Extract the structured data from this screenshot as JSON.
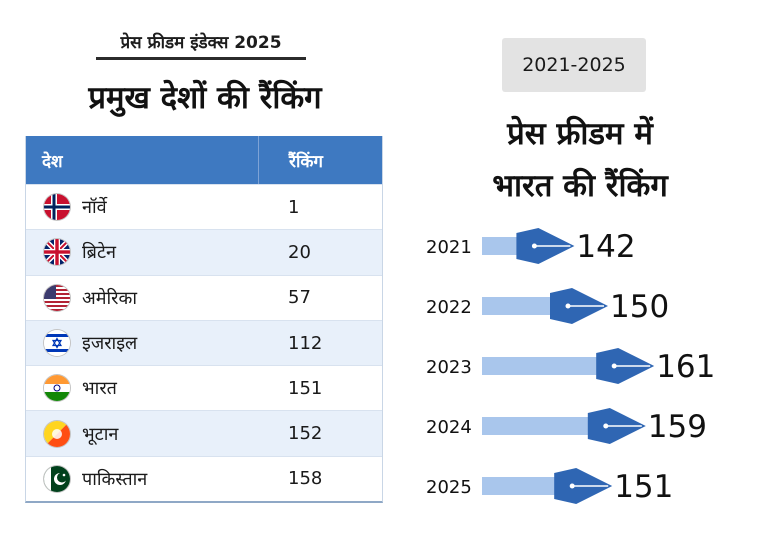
{
  "left": {
    "subtitle": "प्रेस फ्रीडम इंडेक्स 2025",
    "title": "प्रमुख देशों की रैंकिंग",
    "table": {
      "headers": [
        "देश",
        "रैंकिंग"
      ],
      "rows": [
        {
          "country": "नॉर्वे",
          "rank": "1",
          "flag": "norway-flag-icon"
        },
        {
          "country": "ब्रिटेन",
          "rank": "20",
          "flag": "uk-flag-icon"
        },
        {
          "country": "अमेरिका",
          "rank": "57",
          "flag": "usa-flag-icon"
        },
        {
          "country": "इजराइल",
          "rank": "112",
          "flag": "israel-flag-icon"
        },
        {
          "country": "भारत",
          "rank": "151",
          "flag": "india-flag-icon"
        },
        {
          "country": "भूटान",
          "rank": "152",
          "flag": "bhutan-flag-icon"
        },
        {
          "country": "पाकिस्तान",
          "rank": "158",
          "flag": "pakistan-flag-icon"
        }
      ]
    }
  },
  "right": {
    "period": "2021-2025",
    "title_line1": "प्रेस फ्रीडम में",
    "title_line2": "भारत की रैंकिंग"
  },
  "colors": {
    "header_blue": "#3e79c1",
    "row_alt": "#e8f0fa",
    "pen_body": "#a9c6ec",
    "pen_nib": "#2f66b3"
  },
  "chart_data": {
    "type": "bar",
    "categories": [
      "2021",
      "2022",
      "2023",
      "2024",
      "2025"
    ],
    "values": [
      142,
      150,
      161,
      159,
      151
    ],
    "title": "प्रेस फ्रीडम में भारत की रैंकिंग"
  }
}
